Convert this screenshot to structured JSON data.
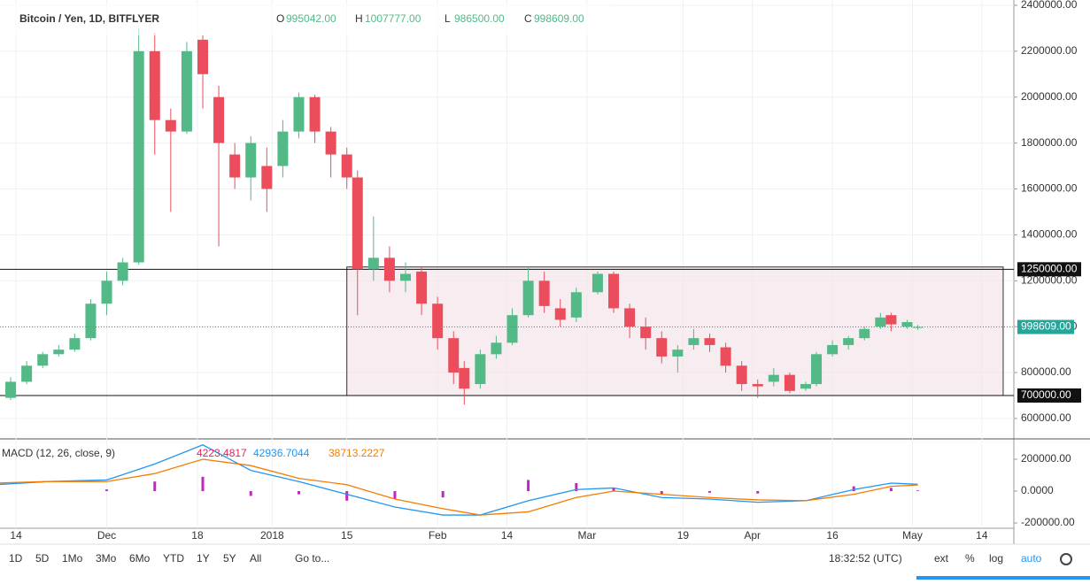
{
  "chart_data": [
    {
      "type": "candlestick",
      "title": "Bitcoin / Yen, 1D, BITFLYER",
      "ohlc_labels": [
        {
          "name": "O",
          "value": "995042.00"
        },
        {
          "name": "H",
          "value": "1007777.00"
        },
        {
          "name": "L",
          "value": "986500.00"
        },
        {
          "name": "C",
          "value": "998609.00"
        }
      ],
      "x": [
        "2017-11-10",
        "2017-11-13",
        "2017-11-16",
        "2017-11-19",
        "2017-11-22",
        "2017-11-25",
        "2017-11-28",
        "2017-12-01",
        "2017-12-04",
        "2017-12-07",
        "2017-12-10",
        "2017-12-13",
        "2017-12-16",
        "2017-12-19",
        "2017-12-22",
        "2017-12-25",
        "2017-12-28",
        "2017-12-31",
        "2018-01-03",
        "2018-01-06",
        "2018-01-09",
        "2018-01-12",
        "2018-01-15",
        "2018-01-17",
        "2018-01-20",
        "2018-01-23",
        "2018-01-26",
        "2018-01-29",
        "2018-02-01",
        "2018-02-04",
        "2018-02-06",
        "2018-02-09",
        "2018-02-12",
        "2018-02-15",
        "2018-02-18",
        "2018-02-21",
        "2018-02-24",
        "2018-02-27",
        "2018-03-03",
        "2018-03-06",
        "2018-03-09",
        "2018-03-12",
        "2018-03-15",
        "2018-03-18",
        "2018-03-21",
        "2018-03-24",
        "2018-03-27",
        "2018-03-30",
        "2018-04-02",
        "2018-04-05",
        "2018-04-08",
        "2018-04-11",
        "2018-04-13",
        "2018-04-16",
        "2018-04-19",
        "2018-04-22",
        "2018-04-25",
        "2018-04-27",
        "2018-04-30",
        "2018-05-02"
      ],
      "open": [
        720000,
        690000,
        760000,
        830000,
        880000,
        900000,
        950000,
        1100000,
        1200000,
        1280000,
        2200000,
        1900000,
        1850000,
        2250000,
        2000000,
        1750000,
        1650000,
        1700000,
        1700000,
        1850000,
        2000000,
        1850000,
        1750000,
        1650000,
        1250000,
        1300000,
        1200000,
        1240000,
        1100000,
        950000,
        820000,
        750000,
        880000,
        930000,
        1050000,
        1200000,
        1080000,
        1040000,
        1150000,
        1230000,
        1080000,
        1000000,
        950000,
        870000,
        920000,
        950000,
        910000,
        830000,
        750000,
        760000,
        790000,
        730000,
        750000,
        880000,
        920000,
        950000,
        1000000,
        1050000,
        1000000,
        995042
      ],
      "high": [
        760000,
        780000,
        850000,
        890000,
        920000,
        970000,
        1120000,
        1240000,
        1300000,
        2300000,
        2280000,
        1950000,
        2240000,
        2270000,
        2050000,
        1800000,
        1830000,
        1780000,
        1900000,
        2020000,
        2010000,
        1870000,
        1780000,
        1680000,
        1480000,
        1350000,
        1280000,
        1260000,
        1130000,
        980000,
        850000,
        900000,
        960000,
        1080000,
        1260000,
        1240000,
        1120000,
        1170000,
        1240000,
        1240000,
        1100000,
        1040000,
        980000,
        920000,
        990000,
        970000,
        930000,
        850000,
        770000,
        820000,
        800000,
        760000,
        890000,
        940000,
        960000,
        1000000,
        1060000,
        1060000,
        1030000,
        1007777
      ],
      "low": [
        620000,
        680000,
        750000,
        820000,
        870000,
        890000,
        940000,
        1050000,
        1180000,
        1270000,
        1750000,
        1500000,
        1840000,
        1950000,
        1350000,
        1600000,
        1550000,
        1500000,
        1650000,
        1820000,
        1800000,
        1650000,
        1600000,
        1050000,
        1200000,
        1150000,
        1150000,
        1050000,
        900000,
        750000,
        660000,
        730000,
        860000,
        920000,
        1040000,
        1060000,
        1000000,
        1020000,
        1140000,
        1060000,
        950000,
        900000,
        840000,
        800000,
        900000,
        890000,
        800000,
        720000,
        690000,
        740000,
        710000,
        720000,
        740000,
        870000,
        900000,
        940000,
        990000,
        980000,
        990000,
        986500
      ],
      "close": [
        690000,
        760000,
        830000,
        880000,
        900000,
        950000,
        1100000,
        1200000,
        1280000,
        2200000,
        1900000,
        1850000,
        2200000,
        2100000,
        1800000,
        1650000,
        1800000,
        1600000,
        1850000,
        2000000,
        1850000,
        1750000,
        1650000,
        1250000,
        1300000,
        1200000,
        1230000,
        1100000,
        950000,
        800000,
        730000,
        880000,
        930000,
        1050000,
        1200000,
        1090000,
        1030000,
        1150000,
        1230000,
        1080000,
        1000000,
        950000,
        870000,
        900000,
        950000,
        920000,
        830000,
        750000,
        740000,
        790000,
        720000,
        750000,
        880000,
        920000,
        950000,
        990000,
        1040000,
        1010000,
        1020000,
        998609
      ],
      "up_color": "#53b987",
      "down_color": "#eb4d5c",
      "xlim": [
        "2017-11-11",
        "2018-05-20"
      ],
      "ylim": [
        515000,
        2423000
      ],
      "yticks": [
        {
          "value": 600000,
          "label": "600000.00"
        },
        {
          "value": 800000,
          "label": "800000.00"
        },
        {
          "value": 1000000,
          "label": "1000000.00"
        },
        {
          "value": 1200000,
          "label": "1200000.00"
        },
        {
          "value": 1400000,
          "label": "1400000.00"
        },
        {
          "value": 1600000,
          "label": "1600000.00"
        },
        {
          "value": 1800000,
          "label": "1800000.00"
        },
        {
          "value": 2000000,
          "label": "2000000.00"
        },
        {
          "value": 2200000,
          "label": "2200000.00"
        },
        {
          "value": 2400000,
          "label": "2400000.00"
        }
      ],
      "xticks": [
        {
          "value": "2017-11-14",
          "label": "14"
        },
        {
          "value": "2017-12-01",
          "label": "Dec"
        },
        {
          "value": "2017-12-18",
          "label": "18"
        },
        {
          "value": "2018-01-01",
          "label": "2018"
        },
        {
          "value": "2018-01-15",
          "label": "15"
        },
        {
          "value": "2018-02-01",
          "label": "Feb"
        },
        {
          "value": "2018-02-14",
          "label": "14"
        },
        {
          "value": "2018-03-01",
          "label": "Mar"
        },
        {
          "value": "2018-03-19",
          "label": "19"
        },
        {
          "value": "2018-04-01",
          "label": "Apr"
        },
        {
          "value": "2018-04-16",
          "label": "16"
        },
        {
          "value": "2018-05-01",
          "label": "May"
        },
        {
          "value": "2018-05-14",
          "label": "14"
        }
      ],
      "grid": true,
      "hlines": [
        {
          "value": 1250000,
          "label": "1250000.00"
        },
        {
          "value": 700000,
          "label": "700000.00"
        }
      ],
      "price_line": {
        "value": 998609,
        "label": "998609.00"
      },
      "box": {
        "x": [
          "2018-01-15",
          "2018-05-18"
        ],
        "y": [
          700000,
          1260000
        ],
        "color": "#f3e4e8"
      }
    },
    {
      "type": "macd",
      "title": "MACD (12, 26, close, 9)",
      "legend_values": [
        {
          "value": "4223.4817",
          "color": "#e0245e"
        },
        {
          "value": "42936.7044",
          "color": "#2196f3"
        },
        {
          "value": "38713.2227",
          "color": "#f57c00"
        }
      ],
      "x": [
        "2017-11-10",
        "2017-11-20",
        "2017-12-01",
        "2017-12-10",
        "2017-12-19",
        "2017-12-28",
        "2018-01-06",
        "2018-01-15",
        "2018-01-24",
        "2018-02-02",
        "2018-02-09",
        "2018-02-18",
        "2018-02-27",
        "2018-03-06",
        "2018-03-15",
        "2018-03-24",
        "2018-04-02",
        "2018-04-11",
        "2018-04-20",
        "2018-04-27",
        "2018-05-02"
      ],
      "histogram": {
        "color": "#c026c0",
        "values": [
          -10000,
          0,
          10000,
          60000,
          90000,
          -30000,
          -20000,
          -60000,
          -50000,
          -40000,
          0,
          70000,
          50000,
          20000,
          -20000,
          -10000,
          -15000,
          0,
          30000,
          20000,
          4223.4817
        ]
      },
      "series": [
        {
          "color": "#2196f3",
          "values": [
            40000,
            60000,
            70000,
            170000,
            290000,
            130000,
            60000,
            -20000,
            -100000,
            -150000,
            -150000,
            -60000,
            10000,
            20000,
            -40000,
            -50000,
            -70000,
            -60000,
            10000,
            50000,
            42936.7044
          ]
        },
        {
          "color": "#f57c00",
          "values": [
            50000,
            60000,
            60000,
            110000,
            200000,
            160000,
            80000,
            40000,
            -50000,
            -110000,
            -150000,
            -130000,
            -40000,
            0,
            -20000,
            -40000,
            -55000,
            -60000,
            -20000,
            30000,
            38713.2227
          ]
        }
      ],
      "xlim": [
        "2017-11-11",
        "2018-05-20"
      ],
      "ylim": [
        -233000,
        322000
      ],
      "yticks": [
        {
          "value": -200000,
          "label": "-200000.00"
        },
        {
          "value": 0,
          "label": "0.0000"
        },
        {
          "value": 200000,
          "label": "200000.00"
        }
      ]
    }
  ],
  "toolbar": {
    "ranges": [
      "1D",
      "5D",
      "1Mo",
      "3Mo",
      "6Mo",
      "YTD",
      "1Y",
      "5Y",
      "All"
    ],
    "goto": "Go to...",
    "time": "18:32:52 (UTC)",
    "options": [
      "ext",
      "%",
      "log",
      "auto"
    ]
  }
}
